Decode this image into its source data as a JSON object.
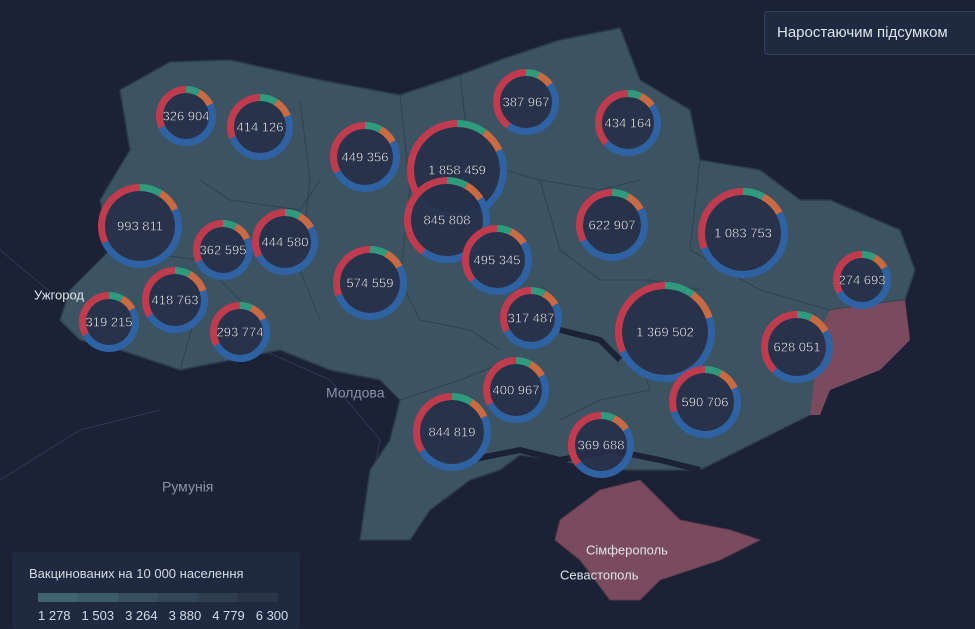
{
  "button": "Наростаючим підсумком",
  "places": [
    "Ужгород",
    "Молдова",
    "Румунія",
    "Сімферополь",
    "Севастополь"
  ],
  "regions": [
    {
      "label": "326 904",
      "shares": [
        0.08,
        0.1,
        0.5,
        0.32
      ]
    },
    {
      "label": "414 126",
      "shares": [
        0.09,
        0.1,
        0.5,
        0.31
      ]
    },
    {
      "label": "449 356",
      "shares": [
        0.08,
        0.09,
        0.5,
        0.33
      ]
    },
    {
      "label": "1 858 459",
      "shares": [
        0.1,
        0.08,
        0.48,
        0.34
      ]
    },
    {
      "label": "387 967",
      "shares": [
        0.07,
        0.08,
        0.45,
        0.4
      ]
    },
    {
      "label": "434 164",
      "shares": [
        0.07,
        0.08,
        0.48,
        0.37
      ]
    },
    {
      "label": "993 811",
      "shares": [
        0.09,
        0.09,
        0.5,
        0.32
      ]
    },
    {
      "label": "362 595",
      "shares": [
        0.08,
        0.1,
        0.5,
        0.32
      ]
    },
    {
      "label": "444 580",
      "shares": [
        0.08,
        0.09,
        0.5,
        0.33
      ]
    },
    {
      "label": "845 808",
      "shares": [
        0.08,
        0.08,
        0.44,
        0.4
      ]
    },
    {
      "label": "495 345",
      "shares": [
        0.07,
        0.09,
        0.48,
        0.36
      ]
    },
    {
      "label": "622 907",
      "shares": [
        0.08,
        0.09,
        0.5,
        0.33
      ]
    },
    {
      "label": "1 083 753",
      "shares": [
        0.08,
        0.09,
        0.52,
        0.31
      ]
    },
    {
      "label": "574 559",
      "shares": [
        0.08,
        0.09,
        0.52,
        0.31
      ]
    },
    {
      "label": "274 693",
      "shares": [
        0.08,
        0.09,
        0.5,
        0.33
      ]
    },
    {
      "label": "319 215",
      "shares": [
        0.08,
        0.09,
        0.5,
        0.33
      ]
    },
    {
      "label": "418 763",
      "shares": [
        0.08,
        0.12,
        0.46,
        0.34
      ]
    },
    {
      "label": "293 774",
      "shares": [
        0.07,
        0.1,
        0.5,
        0.33
      ]
    },
    {
      "label": "317 487",
      "shares": [
        0.08,
        0.09,
        0.5,
        0.33
      ]
    },
    {
      "label": "1 369 502",
      "shares": [
        0.1,
        0.1,
        0.48,
        0.32
      ]
    },
    {
      "label": "628 051",
      "shares": [
        0.07,
        0.1,
        0.45,
        0.38
      ]
    },
    {
      "label": "400 967",
      "shares": [
        0.08,
        0.09,
        0.5,
        0.33
      ]
    },
    {
      "label": "590 706",
      "shares": [
        0.08,
        0.1,
        0.52,
        0.3
      ]
    },
    {
      "label": "844 819",
      "shares": [
        0.09,
        0.09,
        0.48,
        0.34
      ]
    },
    {
      "label": "369 688",
      "shares": [
        0.07,
        0.09,
        0.48,
        0.36
      ]
    }
  ],
  "legend": {
    "title": "Вакцинованих на 10 000 населення",
    "ticks": [
      "1 278",
      "1 503",
      "3 264",
      "3 880",
      "4 779",
      "6 300"
    ]
  }
}
